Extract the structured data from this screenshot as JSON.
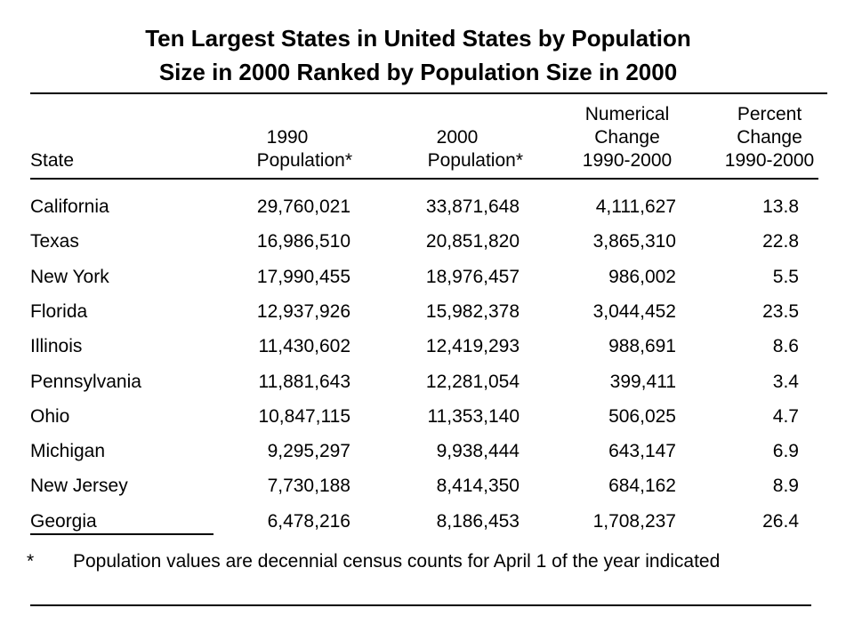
{
  "chart_data": {
    "type": "table",
    "title": "Ten Largest States in United States by Population Size in 2000 Ranked by Population Size in 2000",
    "columns": {
      "state": [
        "State"
      ],
      "pop1990": [
        "1990",
        "Population*"
      ],
      "pop2000": [
        "2000",
        "Population*"
      ],
      "numerical_change": [
        "Numerical",
        "Change",
        "1990-2000"
      ],
      "percent_change": [
        "Percent",
        "Change",
        "1990-2000"
      ]
    },
    "rows": [
      {
        "state": "California",
        "pop1990": "29,760,021",
        "pop2000": "33,871,648",
        "numerical_change": "4,111,627",
        "percent_change": "13.8"
      },
      {
        "state": "Texas",
        "pop1990": "16,986,510",
        "pop2000": "20,851,820",
        "numerical_change": "3,865,310",
        "percent_change": "22.8"
      },
      {
        "state": "New York",
        "pop1990": "17,990,455",
        "pop2000": "18,976,457",
        "numerical_change": "986,002",
        "percent_change": "5.5"
      },
      {
        "state": "Florida",
        "pop1990": "12,937,926",
        "pop2000": "15,982,378",
        "numerical_change": "3,044,452",
        "percent_change": "23.5"
      },
      {
        "state": "Illinois",
        "pop1990": "11,430,602",
        "pop2000": "12,419,293",
        "numerical_change": "988,691",
        "percent_change": "8.6"
      },
      {
        "state": "Pennsylvania",
        "pop1990": "11,881,643",
        "pop2000": "12,281,054",
        "numerical_change": "399,411",
        "percent_change": "3.4"
      },
      {
        "state": "Ohio",
        "pop1990": "10,847,115",
        "pop2000": "11,353,140",
        "numerical_change": "506,025",
        "percent_change": "4.7"
      },
      {
        "state": "Michigan",
        "pop1990": "9,295,297",
        "pop2000": "9,938,444",
        "numerical_change": "643,147",
        "percent_change": "6.9"
      },
      {
        "state": "New Jersey",
        "pop1990": "7,730,188",
        "pop2000": "8,414,350",
        "numerical_change": "684,162",
        "percent_change": "8.9"
      },
      {
        "state": "Georgia",
        "pop1990": "6,478,216",
        "pop2000": "8,186,453",
        "numerical_change": "1,708,237",
        "percent_change": "26.4"
      }
    ],
    "footnote": {
      "mark": "*",
      "text": "Population values are decennial census counts for April 1 of the year indicated"
    }
  },
  "title_lines": [
    "Ten Largest States in United States by Population",
    "Size in 2000 Ranked by Population Size in 2000"
  ]
}
